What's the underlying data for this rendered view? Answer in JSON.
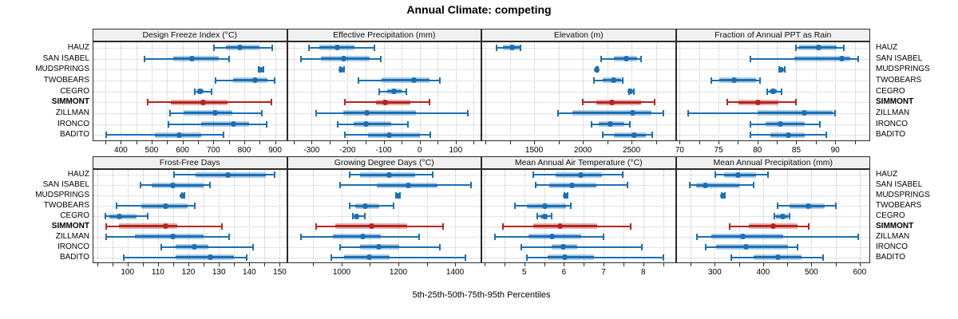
{
  "title": "Annual Climate: competing",
  "caption": "5th-25th-50th-75th-95th Percentiles",
  "highlighted_site": "SIMMONT",
  "colors": {
    "series": "#1a6fb4",
    "highlight": "#b42520",
    "strip_bg": "#f0f0f0",
    "panel_border": "#2a2a2a",
    "grid": "#c4c4c4"
  },
  "chart_data": {
    "type": "dotplot",
    "orientation": "horizontal",
    "percentiles": [
      5,
      25,
      50,
      75,
      95
    ],
    "rows": [
      "HAUZ",
      "SAN ISABEL",
      "MUDSPRINGS",
      "TWOBEARS",
      "CEGRO",
      "SIMMONT",
      "ZILLMAN",
      "IRONCO",
      "BADITO"
    ],
    "legend": "none",
    "grid": "dotted",
    "panels": [
      {
        "title": "Design Freeze Index (°C)",
        "ticks": [
          400,
          500,
          600,
          700,
          800,
          900
        ],
        "minor_step": 50,
        "xmin": 311,
        "xmax": 936,
        "values": [
          [
            700,
            740,
            787,
            850,
            891
          ],
          [
            475,
            570,
            630,
            718,
            752
          ],
          [
            845,
            850,
            854,
            858,
            862
          ],
          [
            705,
            765,
            835,
            876,
            898
          ],
          [
            637,
            648,
            657,
            668,
            693
          ],
          [
            484,
            563,
            668,
            745,
            888
          ],
          [
            556,
            603,
            706,
            762,
            858
          ],
          [
            552,
            660,
            766,
            815,
            872
          ],
          [
            350,
            510,
            590,
            660,
            733
          ]
        ]
      },
      {
        "title": "Effective Precipitation (mm)",
        "ticks": [
          -300,
          -200,
          -100,
          0,
          100
        ],
        "minor_step": 50,
        "xmin": -366,
        "xmax": 169,
        "values": [
          [
            -310,
            -278,
            -228,
            -180,
            -125
          ],
          [
            -332,
            -275,
            -212,
            -139,
            -109
          ],
          [
            -224,
            -220,
            -217,
            -214,
            -210
          ],
          [
            -172,
            -106,
            -17,
            27,
            56
          ],
          [
            -115,
            -90,
            -72,
            -50,
            -36
          ],
          [
            -209,
            -121,
            -95,
            -25,
            27
          ],
          [
            -290,
            -211,
            -147,
            -10,
            134
          ],
          [
            -229,
            -183,
            -150,
            -80,
            -32
          ],
          [
            -209,
            -143,
            -84,
            0,
            29
          ]
        ]
      },
      {
        "title": "Elevation (m)",
        "ticks": [
          1500,
          2000,
          2500
        ],
        "minor_step": 250,
        "xmin": 967,
        "xmax": 2946,
        "values": [
          [
            1105,
            1178,
            1276,
            1348,
            1360
          ],
          [
            2180,
            2316,
            2443,
            2558,
            2600
          ],
          [
            2128,
            2134,
            2140,
            2146,
            2152
          ],
          [
            2108,
            2208,
            2316,
            2395,
            2410
          ],
          [
            2465,
            2478,
            2490,
            2505,
            2520
          ],
          [
            1991,
            2140,
            2297,
            2598,
            2735
          ],
          [
            1735,
            1892,
            2514,
            2703,
            2828
          ],
          [
            2081,
            2167,
            2281,
            2424,
            2486
          ],
          [
            2200,
            2316,
            2527,
            2648,
            2713
          ]
        ]
      },
      {
        "title": "Fraction of Annual PPT as Rain",
        "ticks": [
          70,
          75,
          80,
          85,
          90
        ],
        "minor_step": 2.5,
        "xmin": 69.6,
        "xmax": 94.4,
        "values": [
          [
            84.9,
            85.4,
            87.9,
            90.2,
            91.1
          ],
          [
            79,
            84.7,
            90.9,
            91.9,
            93
          ],
          [
            82.7,
            82.9,
            83.1,
            83.3,
            83.5
          ],
          [
            74,
            75.1,
            77,
            79.8,
            80.3
          ],
          [
            81.2,
            81.6,
            82,
            82.5,
            83.1
          ],
          [
            76,
            77.6,
            80.1,
            82.7,
            85
          ],
          [
            71,
            80,
            86,
            89.7,
            90
          ],
          [
            79,
            81,
            83,
            86.1,
            88
          ],
          [
            79,
            81.7,
            84,
            86.1,
            88.9
          ]
        ]
      },
      {
        "title": "Frost-Free Days",
        "ticks": [
          100,
          110,
          120,
          130,
          140,
          150
        ],
        "minor_step": 5,
        "xmin": 88.8,
        "xmax": 152.1,
        "values": [
          [
            115,
            122.3,
            133,
            145.5,
            148.3
          ],
          [
            104,
            108,
            115,
            125,
            127.1
          ],
          [
            117.5,
            117.8,
            118.1,
            118.4,
            118.7
          ],
          [
            96.2,
            104.6,
            112.5,
            119.7,
            122.1
          ],
          [
            92.5,
            94,
            97.4,
            102.9,
            106.7
          ],
          [
            92.7,
            97.2,
            112.4,
            116.3,
            131.1
          ],
          [
            92.7,
            102.4,
            115,
            124.9,
            133.4
          ],
          [
            110.9,
            115.8,
            121.9,
            126.6,
            141.3
          ],
          [
            98.4,
            115.8,
            127.1,
            134.9,
            139
          ]
        ]
      },
      {
        "title": "Growing Degree Days (°C)",
        "ticks": [
          1000,
          1200,
          1400
        ],
        "minor_step": 100,
        "xmin": 810,
        "xmax": 1490,
        "values": [
          [
            1025,
            1066,
            1168,
            1259,
            1320
          ],
          [
            991,
            1124,
            1234,
            1339,
            1456
          ],
          [
            1190,
            1194,
            1198,
            1202,
            1206
          ],
          [
            1025,
            1049,
            1084,
            1133,
            1184
          ],
          [
            1037,
            1044,
            1051,
            1062,
            1081
          ],
          [
            908,
            978,
            1105,
            1231,
            1357
          ],
          [
            854,
            969,
            1074,
            1137,
            1273
          ],
          [
            991,
            1066,
            1130,
            1203,
            1346
          ],
          [
            960,
            1009,
            1097,
            1170,
            1437
          ]
        ]
      },
      {
        "title": "Mean Annual Air Temperature (°C)",
        "ticks": [
          5,
          6,
          7,
          8
        ],
        "minor_step": 0.5,
        "xmin": 3.94,
        "xmax": 8.8,
        "values": [
          [
            5.2,
            5.8,
            6.43,
            6.96,
            7.49
          ],
          [
            5.27,
            5.64,
            6.21,
            6.81,
            7.61
          ],
          [
            6.0,
            6.03,
            6.05,
            6.07,
            6.1
          ],
          [
            4.75,
            5.07,
            5.52,
            6.06,
            6.18
          ],
          [
            5.31,
            5.4,
            5.52,
            5.6,
            5.7
          ],
          [
            4.44,
            5.23,
            5.9,
            6.83,
            7.68
          ],
          [
            4.24,
            5.1,
            5.71,
            6.43,
            6.99
          ],
          [
            4.91,
            5.7,
            5.98,
            6.33,
            7.96
          ],
          [
            5.05,
            5.6,
            6.02,
            6.76,
            8.5
          ]
        ]
      },
      {
        "title": "Mean Annual Precipitation (mm)",
        "ticks": [
          300,
          400,
          500,
          600
        ],
        "minor_step": 50,
        "xmin": 221,
        "xmax": 620,
        "values": [
          [
            300,
            320,
            348,
            386,
            410
          ],
          [
            246,
            261,
            280,
            351,
            380
          ],
          [
            313,
            315,
            317,
            319,
            321
          ],
          [
            429,
            454,
            493,
            528,
            551
          ],
          [
            421,
            427,
            440,
            452,
            455
          ],
          [
            329,
            370,
            421,
            471,
            495
          ],
          [
            262,
            293,
            358,
            441,
            597
          ],
          [
            279,
            302,
            364,
            452,
            472
          ],
          [
            332,
            381,
            430,
            479,
            524
          ]
        ]
      }
    ]
  }
}
